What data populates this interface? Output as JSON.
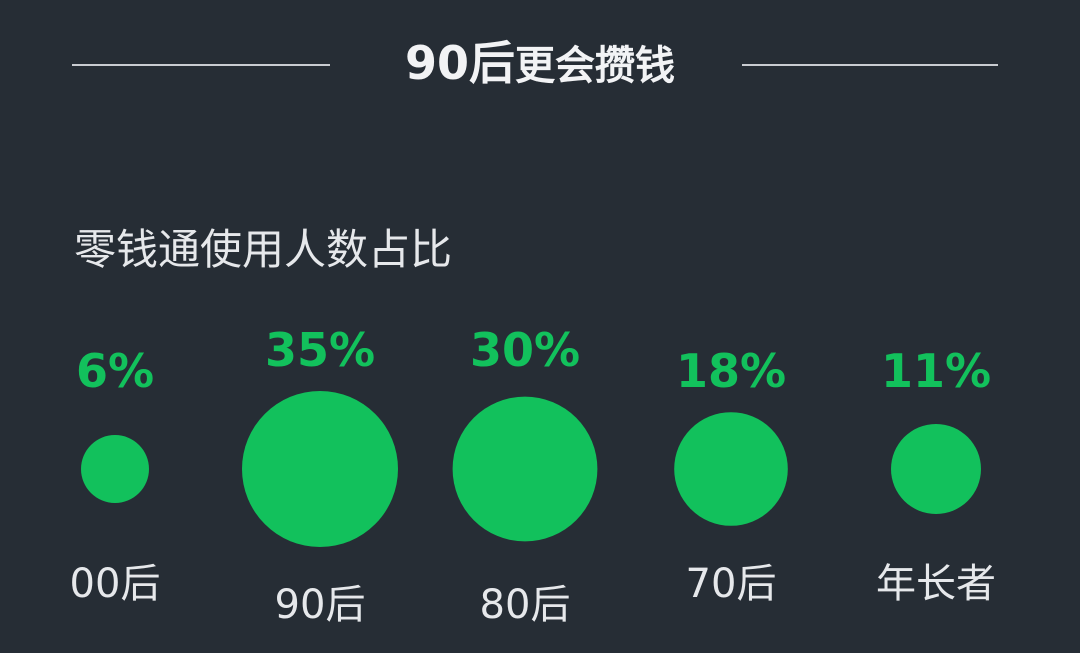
{
  "header": {
    "title_accent": "90后",
    "title_rest": "更会攒钱",
    "subtitle": "零钱通使用人数占比"
  },
  "colors": {
    "background": "#262d35",
    "accent": "#12c15c",
    "text": "#e6e8eb"
  },
  "chart_data": {
    "type": "bubble",
    "title": "零钱通使用人数占比",
    "value_unit": "%",
    "categories": [
      "00后",
      "90后",
      "80后",
      "70后",
      "年长者"
    ],
    "values": [
      6,
      35,
      30,
      18,
      11
    ],
    "value_labels": [
      "6%",
      "35%",
      "30%",
      "18%",
      "11%"
    ]
  }
}
